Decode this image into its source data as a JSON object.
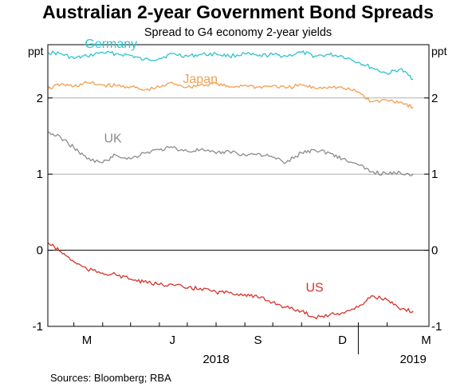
{
  "title": "Australian 2-year Government Bond Spreads",
  "subtitle": "Spread to G4 economy 2-year yields",
  "sources": "Sources:  Bloomberg; RBA",
  "chart_data": {
    "type": "line",
    "ylabel_left": "ppt",
    "ylabel_right": "ppt",
    "ylim": [
      -1,
      2.7
    ],
    "yticks": [
      -1,
      0,
      1,
      2
    ],
    "ytick_labels": [
      "-1",
      "0",
      "1",
      "2"
    ],
    "xticks": [
      "M",
      "J",
      "S",
      "D",
      "M"
    ],
    "years": [
      "2018",
      "2019"
    ],
    "grid": "horizontal reference lines at 0, 1 and 2",
    "colors": {
      "Germany": "#2ec4cc",
      "Japan": "#f0a050",
      "UK": "#8c8c8c",
      "US": "#d6332a",
      "zero_line": "#000000",
      "gridline": "#b0b0b0"
    },
    "series": [
      {
        "name": "Germany",
        "points": [
          [
            "2018-02-01",
            2.6
          ],
          [
            "2018-02-15",
            2.58
          ],
          [
            "2018-03-01",
            2.52
          ],
          [
            "2018-03-15",
            2.55
          ],
          [
            "2018-04-01",
            2.6
          ],
          [
            "2018-04-15",
            2.58
          ],
          [
            "2018-05-01",
            2.56
          ],
          [
            "2018-05-15",
            2.5
          ],
          [
            "2018-06-01",
            2.52
          ],
          [
            "2018-06-15",
            2.58
          ],
          [
            "2018-07-01",
            2.55
          ],
          [
            "2018-07-15",
            2.57
          ],
          [
            "2018-08-01",
            2.58
          ],
          [
            "2018-08-15",
            2.55
          ],
          [
            "2018-09-01",
            2.58
          ],
          [
            "2018-09-15",
            2.55
          ],
          [
            "2018-10-01",
            2.57
          ],
          [
            "2018-10-15",
            2.55
          ],
          [
            "2018-11-01",
            2.6
          ],
          [
            "2018-11-15",
            2.55
          ],
          [
            "2018-12-01",
            2.57
          ],
          [
            "2018-12-15",
            2.55
          ],
          [
            "2019-01-01",
            2.47
          ],
          [
            "2019-01-15",
            2.4
          ],
          [
            "2019-02-01",
            2.32
          ],
          [
            "2019-02-15",
            2.38
          ],
          [
            "2019-03-01",
            2.25
          ]
        ]
      },
      {
        "name": "Japan",
        "points": [
          [
            "2018-02-01",
            2.12
          ],
          [
            "2018-02-15",
            2.18
          ],
          [
            "2018-03-01",
            2.15
          ],
          [
            "2018-03-15",
            2.2
          ],
          [
            "2018-04-01",
            2.17
          ],
          [
            "2018-04-15",
            2.16
          ],
          [
            "2018-05-01",
            2.15
          ],
          [
            "2018-05-15",
            2.1
          ],
          [
            "2018-06-01",
            2.14
          ],
          [
            "2018-06-15",
            2.2
          ],
          [
            "2018-07-01",
            2.14
          ],
          [
            "2018-07-15",
            2.17
          ],
          [
            "2018-08-01",
            2.19
          ],
          [
            "2018-08-15",
            2.14
          ],
          [
            "2018-09-01",
            2.17
          ],
          [
            "2018-09-15",
            2.14
          ],
          [
            "2018-10-01",
            2.16
          ],
          [
            "2018-10-15",
            2.13
          ],
          [
            "2018-11-01",
            2.17
          ],
          [
            "2018-11-15",
            2.13
          ],
          [
            "2018-12-01",
            2.15
          ],
          [
            "2018-12-15",
            2.13
          ],
          [
            "2019-01-01",
            2.08
          ],
          [
            "2019-01-15",
            1.95
          ],
          [
            "2019-02-01",
            1.97
          ],
          [
            "2019-02-15",
            1.95
          ],
          [
            "2019-03-01",
            1.88
          ]
        ]
      },
      {
        "name": "UK",
        "points": [
          [
            "2018-02-01",
            1.55
          ],
          [
            "2018-02-15",
            1.48
          ],
          [
            "2018-03-01",
            1.35
          ],
          [
            "2018-03-15",
            1.2
          ],
          [
            "2018-04-01",
            1.15
          ],
          [
            "2018-04-15",
            1.25
          ],
          [
            "2018-05-01",
            1.2
          ],
          [
            "2018-05-15",
            1.28
          ],
          [
            "2018-06-01",
            1.32
          ],
          [
            "2018-06-15",
            1.35
          ],
          [
            "2018-07-01",
            1.3
          ],
          [
            "2018-07-15",
            1.32
          ],
          [
            "2018-08-01",
            1.27
          ],
          [
            "2018-08-15",
            1.3
          ],
          [
            "2018-09-01",
            1.25
          ],
          [
            "2018-09-15",
            1.27
          ],
          [
            "2018-10-01",
            1.22
          ],
          [
            "2018-10-15",
            1.15
          ],
          [
            "2018-11-01",
            1.28
          ],
          [
            "2018-11-15",
            1.32
          ],
          [
            "2018-12-01",
            1.28
          ],
          [
            "2018-12-15",
            1.2
          ],
          [
            "2019-01-01",
            1.12
          ],
          [
            "2019-01-15",
            1.03
          ],
          [
            "2019-02-01",
            1.0
          ],
          [
            "2019-02-15",
            1.02
          ],
          [
            "2019-03-01",
            1.0
          ]
        ]
      },
      {
        "name": "US",
        "points": [
          [
            "2018-02-01",
            0.1
          ],
          [
            "2018-02-15",
            -0.02
          ],
          [
            "2018-03-01",
            -0.15
          ],
          [
            "2018-03-15",
            -0.25
          ],
          [
            "2018-04-01",
            -0.3
          ],
          [
            "2018-04-15",
            -0.32
          ],
          [
            "2018-05-01",
            -0.38
          ],
          [
            "2018-05-15",
            -0.42
          ],
          [
            "2018-06-01",
            -0.45
          ],
          [
            "2018-06-15",
            -0.45
          ],
          [
            "2018-07-01",
            -0.5
          ],
          [
            "2018-07-15",
            -0.5
          ],
          [
            "2018-08-01",
            -0.55
          ],
          [
            "2018-08-15",
            -0.56
          ],
          [
            "2018-09-01",
            -0.58
          ],
          [
            "2018-09-15",
            -0.62
          ],
          [
            "2018-10-01",
            -0.68
          ],
          [
            "2018-10-15",
            -0.75
          ],
          [
            "2018-11-01",
            -0.8
          ],
          [
            "2018-11-15",
            -0.88
          ],
          [
            "2018-12-01",
            -0.85
          ],
          [
            "2018-12-15",
            -0.82
          ],
          [
            "2019-01-01",
            -0.75
          ],
          [
            "2019-01-15",
            -0.6
          ],
          [
            "2019-02-01",
            -0.65
          ],
          [
            "2019-02-15",
            -0.78
          ],
          [
            "2019-03-01",
            -0.8
          ]
        ]
      }
    ]
  }
}
